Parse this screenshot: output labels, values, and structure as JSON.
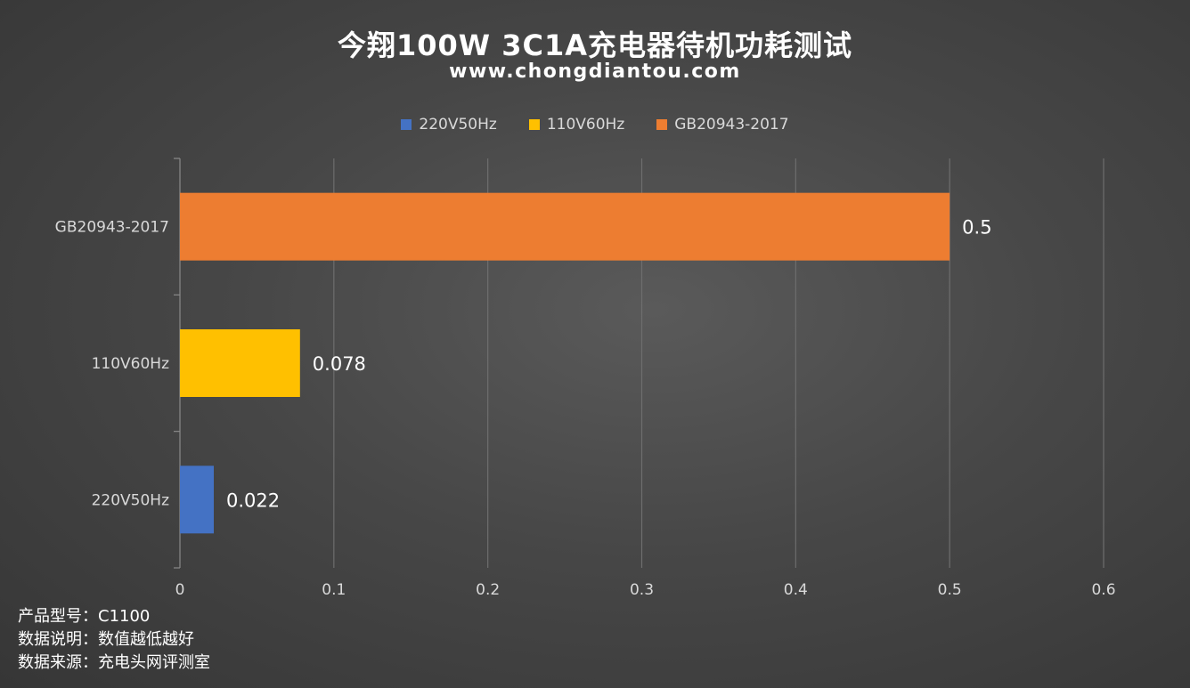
{
  "title": "今翔100W 3C1A充电器待机功耗测试",
  "subtitle": "www.chongdiantou.com",
  "legend": [
    {
      "label": "220V50Hz",
      "color": "#4472c4"
    },
    {
      "label": "110V60Hz",
      "color": "#ffc000"
    },
    {
      "label": "GB20943-2017",
      "color": "#ed7d31"
    }
  ],
  "chart_data": {
    "type": "bar",
    "orientation": "horizontal",
    "categories": [
      "GB20943-2017",
      "110V60Hz",
      "220V50Hz"
    ],
    "values": [
      0.5,
      0.078,
      0.022
    ],
    "value_labels": [
      "0.5",
      "0.078",
      "0.022"
    ],
    "colors": [
      "#ed7d31",
      "#ffc000",
      "#4472c4"
    ],
    "xlim": [
      0,
      0.6
    ],
    "xticks": [
      "0",
      "0.1",
      "0.2",
      "0.3",
      "0.4",
      "0.5",
      "0.6"
    ],
    "grid": true,
    "legend_position": "top"
  },
  "notes": [
    "产品型号：C1100",
    "数据说明：数值越低越好",
    "数据来源：充电头网评测室"
  ]
}
